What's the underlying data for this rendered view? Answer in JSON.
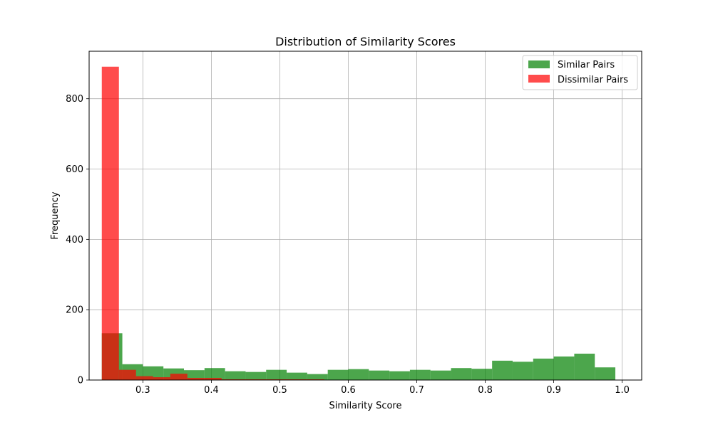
{
  "chart_data": {
    "type": "bar",
    "title": "Distribution of Similarity Scores",
    "xlabel": "Similarity Score",
    "ylabel": "Frequency",
    "xlim": [
      0.2215,
      1.0285
    ],
    "ylim": [
      0,
      935
    ],
    "x_ticks": [
      0.3,
      0.4,
      0.5,
      0.6,
      0.7,
      0.8,
      0.9,
      1.0
    ],
    "x_tick_labels": [
      "0.3",
      "0.4",
      "0.5",
      "0.6",
      "0.7",
      "0.8",
      "0.9",
      "1.0"
    ],
    "y_ticks": [
      0,
      200,
      400,
      600,
      800
    ],
    "y_tick_labels": [
      "0",
      "200",
      "400",
      "600",
      "800"
    ],
    "grid": true,
    "legend_position": "top-right",
    "series": [
      {
        "name": "Similar Pairs",
        "color": "#008000",
        "opacity": 0.7,
        "bins": [
          {
            "x0": 0.24,
            "x1": 0.27,
            "value": 133
          },
          {
            "x0": 0.27,
            "x1": 0.3,
            "value": 45
          },
          {
            "x0": 0.3,
            "x1": 0.33,
            "value": 39
          },
          {
            "x0": 0.33,
            "x1": 0.36,
            "value": 33
          },
          {
            "x0": 0.36,
            "x1": 0.39,
            "value": 28
          },
          {
            "x0": 0.39,
            "x1": 0.42,
            "value": 34
          },
          {
            "x0": 0.42,
            "x1": 0.45,
            "value": 25
          },
          {
            "x0": 0.45,
            "x1": 0.48,
            "value": 23
          },
          {
            "x0": 0.48,
            "x1": 0.51,
            "value": 29
          },
          {
            "x0": 0.51,
            "x1": 0.54,
            "value": 21
          },
          {
            "x0": 0.54,
            "x1": 0.57,
            "value": 17
          },
          {
            "x0": 0.57,
            "x1": 0.6,
            "value": 29
          },
          {
            "x0": 0.6,
            "x1": 0.63,
            "value": 31
          },
          {
            "x0": 0.63,
            "x1": 0.66,
            "value": 27
          },
          {
            "x0": 0.66,
            "x1": 0.69,
            "value": 25
          },
          {
            "x0": 0.69,
            "x1": 0.72,
            "value": 29
          },
          {
            "x0": 0.72,
            "x1": 0.75,
            "value": 27
          },
          {
            "x0": 0.75,
            "x1": 0.78,
            "value": 34
          },
          {
            "x0": 0.78,
            "x1": 0.81,
            "value": 32
          },
          {
            "x0": 0.81,
            "x1": 0.84,
            "value": 55
          },
          {
            "x0": 0.84,
            "x1": 0.87,
            "value": 52
          },
          {
            "x0": 0.87,
            "x1": 0.9,
            "value": 61
          },
          {
            "x0": 0.9,
            "x1": 0.93,
            "value": 67
          },
          {
            "x0": 0.93,
            "x1": 0.96,
            "value": 75
          },
          {
            "x0": 0.96,
            "x1": 0.99,
            "value": 36
          }
        ]
      },
      {
        "name": "Dissimilar Pairs",
        "color": "#ff0000",
        "opacity": 0.7,
        "bins": [
          {
            "x0": 0.24,
            "x1": 0.265,
            "value": 891
          },
          {
            "x0": 0.265,
            "x1": 0.29,
            "value": 29
          },
          {
            "x0": 0.29,
            "x1": 0.315,
            "value": 11
          },
          {
            "x0": 0.315,
            "x1": 0.34,
            "value": 8
          },
          {
            "x0": 0.34,
            "x1": 0.365,
            "value": 18
          },
          {
            "x0": 0.365,
            "x1": 0.39,
            "value": 6
          },
          {
            "x0": 0.39,
            "x1": 0.415,
            "value": 6
          },
          {
            "x0": 0.415,
            "x1": 0.44,
            "value": 2
          },
          {
            "x0": 0.44,
            "x1": 0.465,
            "value": 2
          },
          {
            "x0": 0.465,
            "x1": 0.49,
            "value": 2
          },
          {
            "x0": 0.49,
            "x1": 0.515,
            "value": 2
          },
          {
            "x0": 0.515,
            "x1": 0.54,
            "value": 2
          },
          {
            "x0": 0.54,
            "x1": 0.565,
            "value": 2
          },
          {
            "x0": 0.565,
            "x1": 0.59,
            "value": 1
          },
          {
            "x0": 0.59,
            "x1": 0.615,
            "value": 1
          },
          {
            "x0": 0.615,
            "x1": 0.64,
            "value": 1
          },
          {
            "x0": 0.64,
            "x1": 0.665,
            "value": 1
          },
          {
            "x0": 0.665,
            "x1": 0.69,
            "value": 1
          }
        ]
      }
    ]
  }
}
